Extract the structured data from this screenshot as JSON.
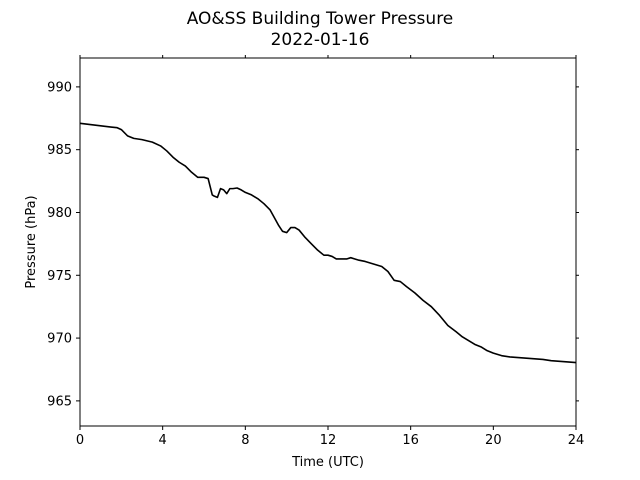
{
  "chart_data": {
    "type": "line",
    "title": "AO&SS Building Tower Pressure",
    "subtitle": "2022-01-16",
    "xlabel": "Time (UTC)",
    "ylabel": "Pressure (hPa)",
    "xlim": [
      0,
      24
    ],
    "ylim": [
      963,
      992.3
    ],
    "xticks": [
      0,
      4,
      8,
      12,
      16,
      20,
      24
    ],
    "yticks": [
      965,
      970,
      975,
      980,
      985,
      990
    ],
    "grid": false,
    "line_color": "#000000",
    "series": [
      {
        "x": [
          0,
          0.5,
          1.0,
          1.5,
          1.8,
          2.0,
          2.3,
          2.6,
          3.0,
          3.5,
          3.9,
          4.2,
          4.5,
          4.8,
          5.1,
          5.4,
          5.7,
          6.0,
          6.2,
          6.4,
          6.5,
          6.65,
          6.8,
          6.95,
          7.1,
          7.25,
          7.4,
          7.6,
          7.8,
          8.0,
          8.3,
          8.6,
          8.9,
          9.2,
          9.4,
          9.6,
          9.8,
          10.0,
          10.2,
          10.4,
          10.6,
          10.9,
          11.2,
          11.5,
          11.8,
          12.0,
          12.2,
          12.4,
          12.6,
          12.9,
          13.1,
          13.3,
          13.5,
          13.8,
          14.2,
          14.6,
          14.9,
          15.2,
          15.5,
          15.8,
          16.2,
          16.6,
          17.0,
          17.4,
          17.8,
          18.2,
          18.5,
          18.8,
          19.1,
          19.4,
          19.7,
          20.0,
          20.4,
          20.8,
          21.2,
          21.6,
          22.0,
          22.4,
          22.8,
          23.2,
          23.6,
          24.0
        ],
        "y": [
          987.1,
          987.0,
          986.9,
          986.8,
          986.75,
          986.6,
          986.1,
          985.9,
          985.8,
          985.6,
          985.3,
          984.9,
          984.4,
          984.0,
          983.7,
          983.2,
          982.8,
          982.8,
          982.7,
          981.4,
          981.3,
          981.2,
          981.9,
          981.8,
          981.5,
          981.9,
          981.9,
          981.95,
          981.8,
          981.6,
          981.4,
          981.1,
          980.7,
          980.2,
          979.6,
          979.0,
          978.5,
          978.4,
          978.8,
          978.8,
          978.6,
          978.0,
          977.5,
          977.0,
          976.6,
          976.6,
          976.5,
          976.3,
          976.3,
          976.3,
          976.4,
          976.3,
          976.2,
          976.1,
          975.9,
          975.7,
          975.3,
          974.6,
          974.5,
          974.1,
          973.6,
          973.0,
          972.5,
          971.8,
          971.0,
          970.5,
          970.1,
          969.8,
          969.5,
          969.3,
          969.0,
          968.8,
          968.6,
          968.5,
          968.45,
          968.4,
          968.35,
          968.3,
          968.2,
          968.15,
          968.1,
          968.05
        ]
      }
    ]
  }
}
